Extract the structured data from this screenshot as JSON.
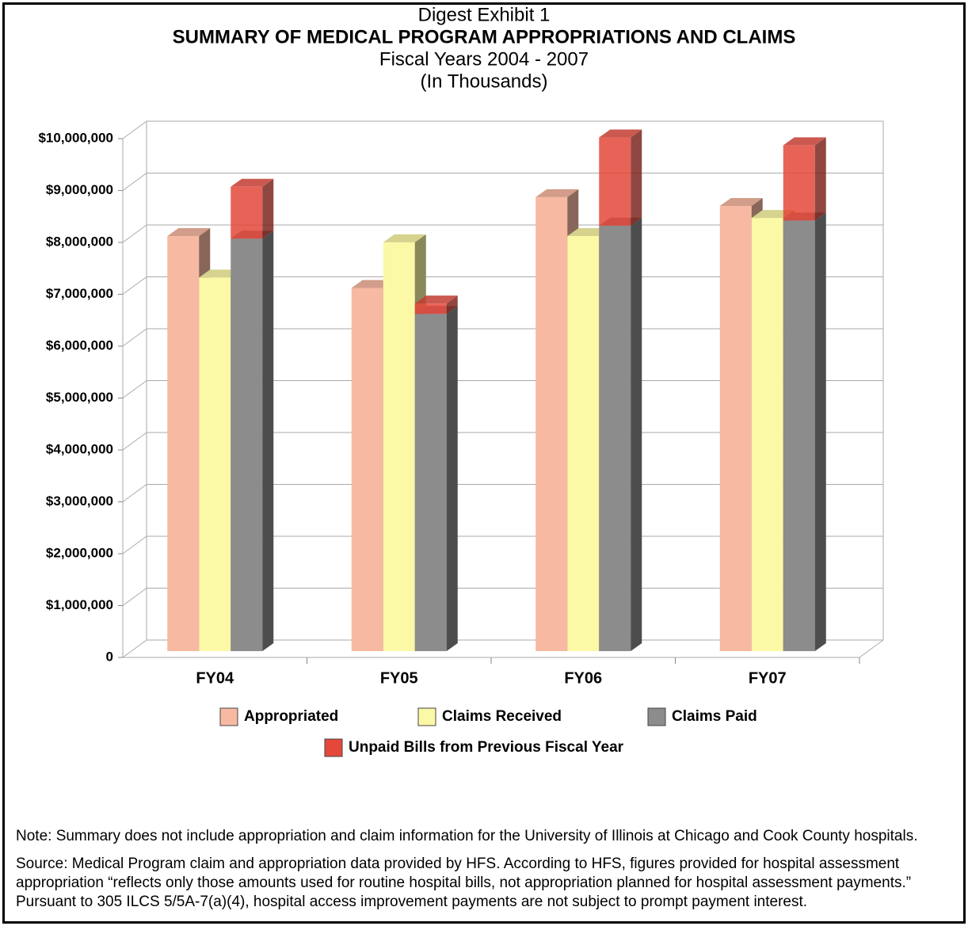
{
  "chart_data": {
    "type": "bar3d",
    "heading": "Digest Exhibit 1",
    "title": "SUMMARY OF MEDICAL PROGRAM APPROPRIATIONS AND CLAIMS",
    "subtitle": [
      "Fiscal Years 2004 - 2007",
      "(In Thousands)"
    ],
    "categories": [
      "FY04",
      "FY05",
      "FY06",
      "FY07"
    ],
    "series": [
      {
        "name": "Appropriated",
        "color": "#f7b9a2",
        "values": [
          8000000,
          7000000,
          8750000,
          8580000
        ]
      },
      {
        "name": "Claims Received",
        "color": "#fbf8a6",
        "values": [
          7200000,
          7880000,
          8000000,
          8350000
        ]
      },
      {
        "name": "Claims Paid",
        "color": "#8c8c8c",
        "values": [
          7950000,
          6500000,
          8200000,
          8300000
        ]
      },
      {
        "name": "Unpaid Bills from Previous Fiscal Year",
        "color": "#e5483a",
        "stacked": true,
        "values": [
          1000000,
          200000,
          1700000,
          1450000
        ]
      }
    ],
    "ylim": [
      0,
      10000000
    ],
    "yticks": [
      0,
      {
        "value": 1000000,
        "label": "$1,000,000"
      },
      {
        "value": 2000000,
        "label": "$2,000,000"
      },
      {
        "value": 3000000,
        "label": "$3,000,000"
      },
      {
        "value": 4000000,
        "label": "$4,000,000"
      },
      {
        "value": 5000000,
        "label": "$5,000,000"
      },
      {
        "value": 6000000,
        "label": "$6,000,000"
      },
      {
        "value": 7000000,
        "label": "$7,000,000"
      },
      {
        "value": 8000000,
        "label": "$8,000,000"
      },
      {
        "value": 9000000,
        "label": "$9,000,000"
      },
      {
        "value": 10000000,
        "label": "$10,000,000"
      }
    ],
    "grid": true
  },
  "notes": [
    "Note:  Summary does not include appropriation and claim information for the University of Illinois at Chicago and Cook County hospitals.",
    "Source:  Medical Program claim and appropriation data provided by HFS.  According to HFS, figures provided for hospital assessment appropriation “reflects only those amounts used for routine hospital bills, not appropriation planned for hospital assessment payments.”  Pursuant to 305 ILCS 5/5A-7(a)(4), hospital access improvement payments are not subject to prompt payment interest."
  ]
}
